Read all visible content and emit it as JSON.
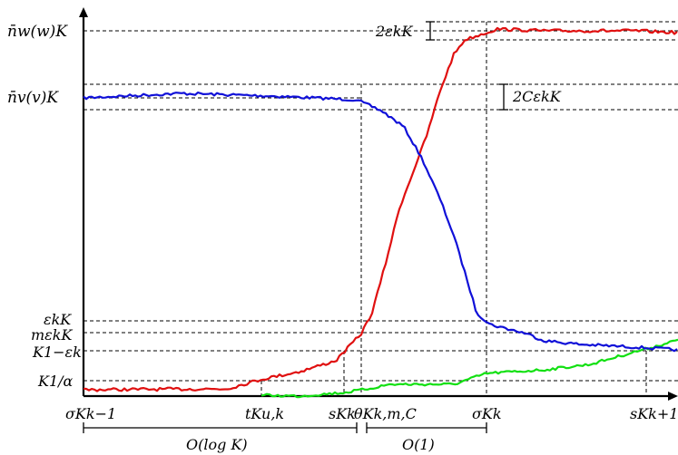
{
  "labels": {
    "y_nw": "n̄w(w)K",
    "y_nv": "n̄v(v)K",
    "y_eps": "εkK",
    "y_meps": "mεkK",
    "y_k1e": "K1−εk",
    "y_k1a": "K1/α",
    "ann_nw": "2εkK",
    "ann_nv": "2CεkK",
    "x_sigma_km1": "σKk−1",
    "x_t": "tKu,k",
    "x_s": "sKk",
    "x_theta": "θKk,m,C",
    "x_sigma_k": "σKk",
    "x_s_kp1": "sKk+1",
    "int_log": "O(log K)",
    "int_one": "O(1)"
  },
  "colors": {
    "resident": "#1010d8",
    "mutant": "#e01010",
    "newmutant": "#12e012"
  },
  "curves": {
    "resident_name": "blue-curve",
    "mutant_name": "red-curve",
    "newmutant_name": "green-curve"
  }
}
